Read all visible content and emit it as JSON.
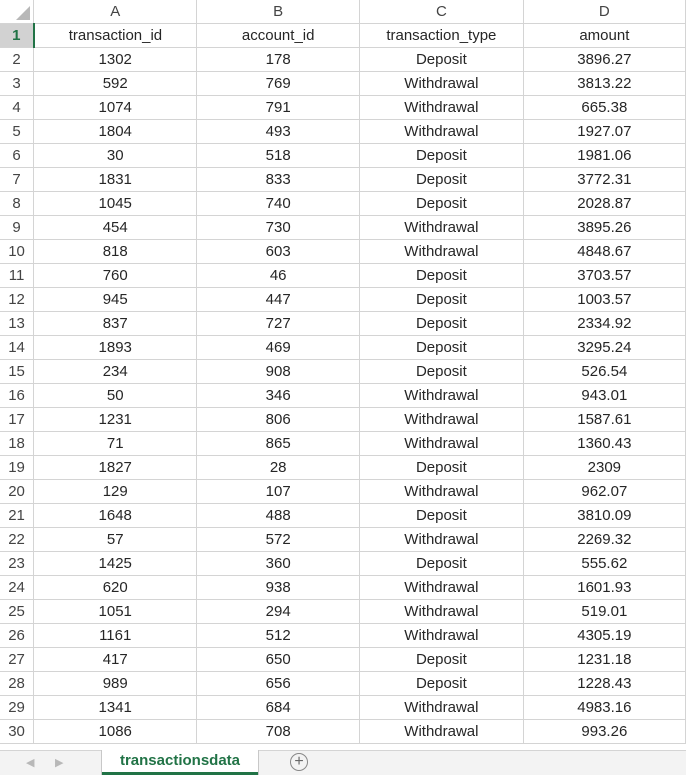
{
  "columns": [
    "A",
    "B",
    "C",
    "D"
  ],
  "headers": [
    "transaction_id",
    "account_id",
    "transaction_type",
    "amount"
  ],
  "rows": [
    [
      "1302",
      "178",
      "Deposit",
      "3896.27"
    ],
    [
      "592",
      "769",
      "Withdrawal",
      "3813.22"
    ],
    [
      "1074",
      "791",
      "Withdrawal",
      "665.38"
    ],
    [
      "1804",
      "493",
      "Withdrawal",
      "1927.07"
    ],
    [
      "30",
      "518",
      "Deposit",
      "1981.06"
    ],
    [
      "1831",
      "833",
      "Deposit",
      "3772.31"
    ],
    [
      "1045",
      "740",
      "Deposit",
      "2028.87"
    ],
    [
      "454",
      "730",
      "Withdrawal",
      "3895.26"
    ],
    [
      "818",
      "603",
      "Withdrawal",
      "4848.67"
    ],
    [
      "760",
      "46",
      "Deposit",
      "3703.57"
    ],
    [
      "945",
      "447",
      "Deposit",
      "1003.57"
    ],
    [
      "837",
      "727",
      "Deposit",
      "2334.92"
    ],
    [
      "1893",
      "469",
      "Deposit",
      "3295.24"
    ],
    [
      "234",
      "908",
      "Deposit",
      "526.54"
    ],
    [
      "50",
      "346",
      "Withdrawal",
      "943.01"
    ],
    [
      "1231",
      "806",
      "Withdrawal",
      "1587.61"
    ],
    [
      "71",
      "865",
      "Withdrawal",
      "1360.43"
    ],
    [
      "1827",
      "28",
      "Deposit",
      "2309"
    ],
    [
      "129",
      "107",
      "Withdrawal",
      "962.07"
    ],
    [
      "1648",
      "488",
      "Deposit",
      "3810.09"
    ],
    [
      "57",
      "572",
      "Withdrawal",
      "2269.32"
    ],
    [
      "1425",
      "360",
      "Deposit",
      "555.62"
    ],
    [
      "620",
      "938",
      "Withdrawal",
      "1601.93"
    ],
    [
      "1051",
      "294",
      "Withdrawal",
      "519.01"
    ],
    [
      "1161",
      "512",
      "Withdrawal",
      "4305.19"
    ],
    [
      "417",
      "650",
      "Deposit",
      "1231.18"
    ],
    [
      "989",
      "656",
      "Deposit",
      "1228.43"
    ],
    [
      "1341",
      "684",
      "Withdrawal",
      "4983.16"
    ],
    [
      "1086",
      "708",
      "Withdrawal",
      "993.26"
    ]
  ],
  "sheet_tab": "transactionsdata",
  "add_sheet_symbol": "+",
  "nav_prev": "◀",
  "nav_next": "▶",
  "colors": {
    "accent": "#217346",
    "grid": "#d4d4d4"
  }
}
